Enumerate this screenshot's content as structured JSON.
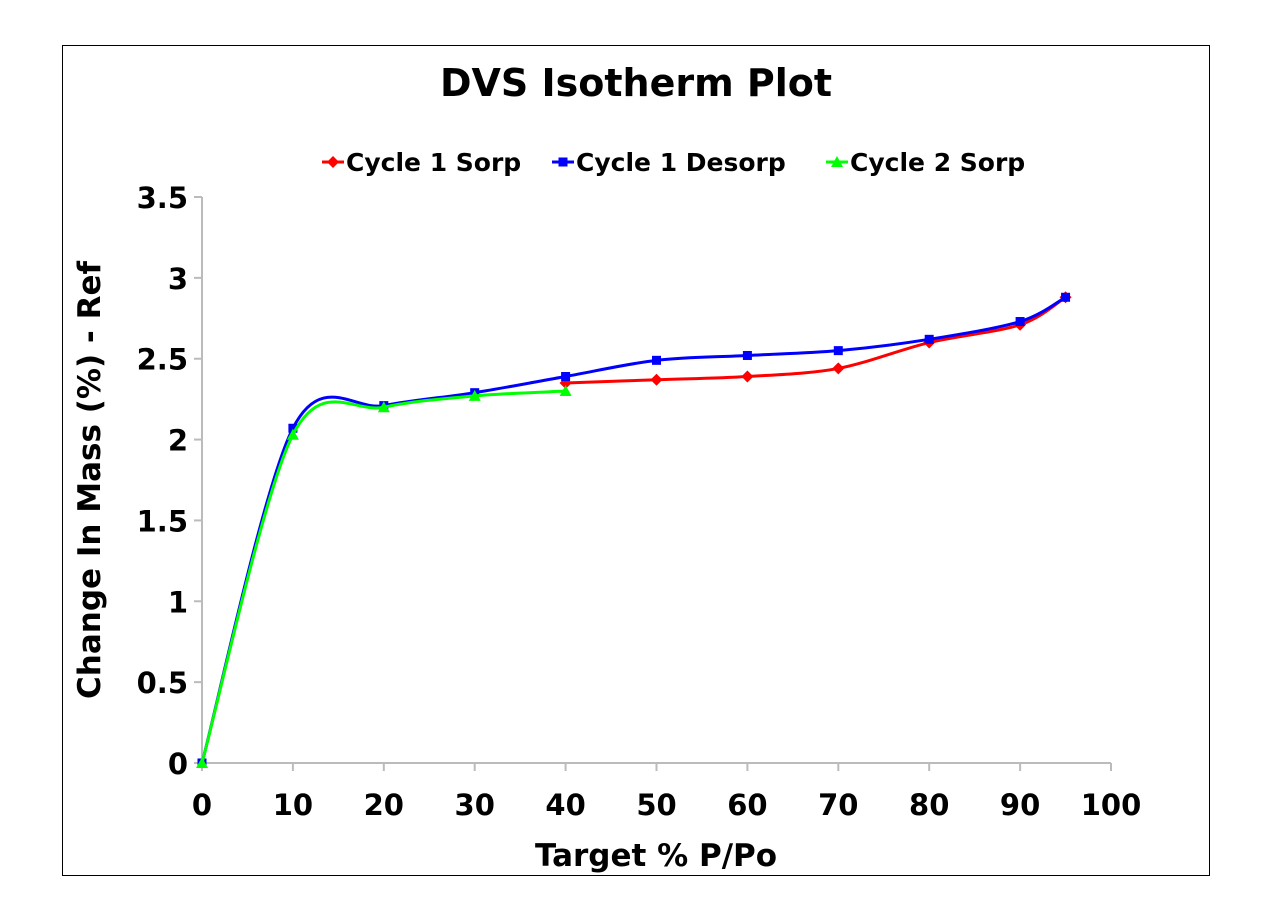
{
  "chart_data": {
    "type": "line",
    "title": "DVS Isotherm Plot",
    "xlabel": "Target % P/Po",
    "ylabel": "Change In Mass (%) - Ref",
    "xlim": [
      0,
      100
    ],
    "ylim": [
      0,
      3.5
    ],
    "xticks": [
      0,
      10,
      20,
      30,
      40,
      50,
      60,
      70,
      80,
      90,
      100
    ],
    "yticks": [
      0,
      0.5,
      1,
      1.5,
      2,
      2.5,
      3,
      3.5
    ],
    "ytick_labels": [
      "0",
      "0.5",
      "1",
      "1.5",
      "2",
      "2.5",
      "3",
      "3.5"
    ],
    "legend_position": "top",
    "grid": false,
    "series": [
      {
        "name": "Cycle 1 Sorp",
        "color": "#ff0000",
        "marker": "diamond",
        "x": [
          40,
          50,
          60,
          70,
          80,
          90,
          95
        ],
        "y": [
          2.35,
          2.37,
          2.39,
          2.44,
          2.6,
          2.71,
          2.88
        ]
      },
      {
        "name": "Cycle 1 Desorp",
        "color": "#0000ff",
        "marker": "square",
        "x": [
          95,
          90,
          80,
          70,
          60,
          50,
          40,
          30,
          20,
          10,
          0
        ],
        "y": [
          2.88,
          2.73,
          2.62,
          2.55,
          2.52,
          2.49,
          2.39,
          2.29,
          2.21,
          2.07,
          0
        ]
      },
      {
        "name": "Cycle 2 Sorp",
        "color": "#00ff00",
        "marker": "triangle",
        "x": [
          0,
          10,
          20,
          30,
          40
        ],
        "y": [
          0,
          2.03,
          2.2,
          2.27,
          2.3
        ]
      }
    ]
  }
}
